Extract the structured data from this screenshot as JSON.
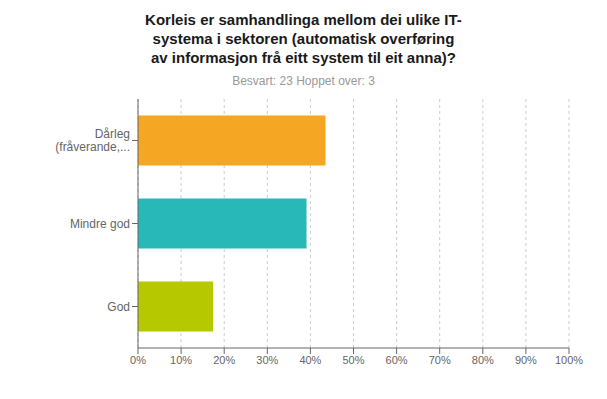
{
  "chart_data": {
    "type": "bar",
    "title": "Korleis er samhandlinga mellom dei ulike IT-\nsystema i sektoren (automatisk overføring\nav informasjon frå eitt system til eit anna)?",
    "subtitle": "Besvart: 23   Hoppet over: 3",
    "categories": [
      "Dårleg\n(fråverande,...",
      "Mindre god",
      "God"
    ],
    "values": [
      43.5,
      39.1,
      17.4
    ],
    "colors": [
      "#f5a623",
      "#29b8b8",
      "#b5c800"
    ],
    "orientation": "horizontal",
    "xlim": [
      0,
      100
    ],
    "xticks": [
      {
        "value": 0,
        "label": "0%"
      },
      {
        "value": 10,
        "label": "10%"
      },
      {
        "value": 20,
        "label": "20%"
      },
      {
        "value": 30,
        "label": "30%"
      },
      {
        "value": 40,
        "label": "40%"
      },
      {
        "value": 50,
        "label": "50%"
      },
      {
        "value": 60,
        "label": "60%"
      },
      {
        "value": 70,
        "label": "70%"
      },
      {
        "value": 80,
        "label": "80%"
      },
      {
        "value": 90,
        "label": "90%"
      },
      {
        "value": 100,
        "label": "100%"
      }
    ],
    "grid": true
  }
}
